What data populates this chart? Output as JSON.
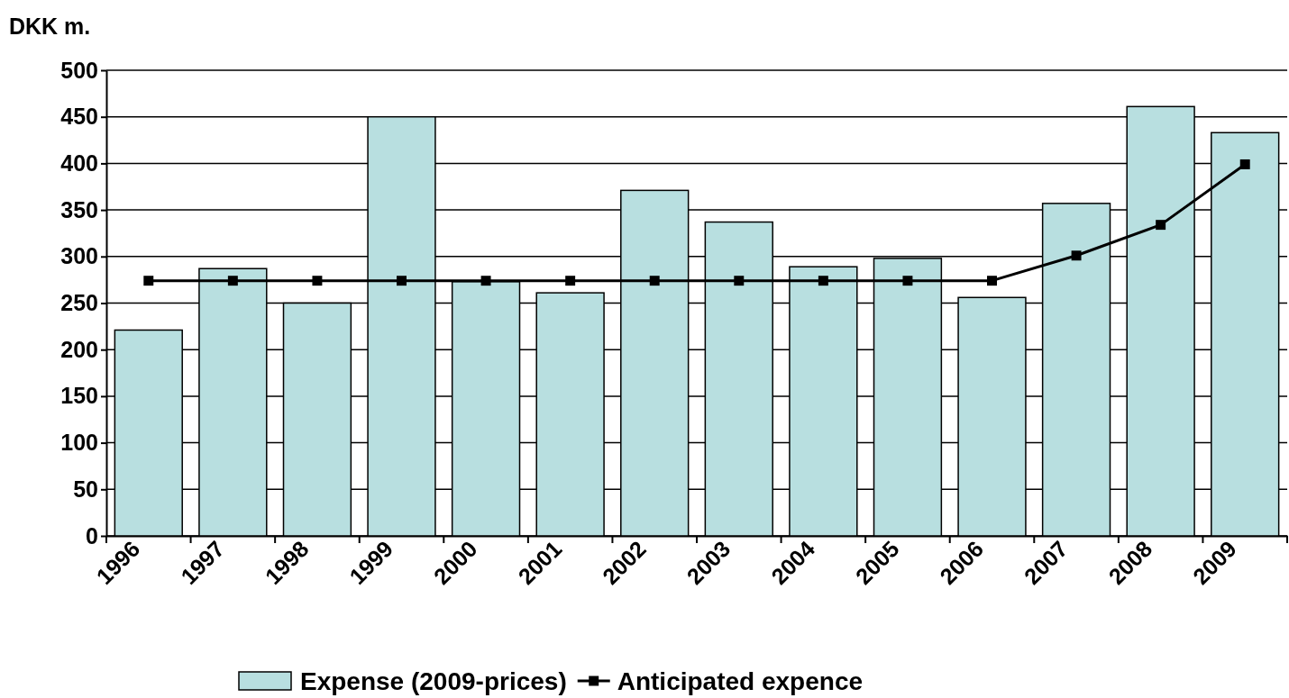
{
  "chart_data": {
    "type": "bar",
    "ylabel": "DKK m.",
    "categories": [
      "1996",
      "1997",
      "1998",
      "1999",
      "2000",
      "2001",
      "2002",
      "2003",
      "2004",
      "2005",
      "2006",
      "2007",
      "2008",
      "2009"
    ],
    "series": [
      {
        "name": "Expense (2009-prices)",
        "color": "#b8dfe0",
        "values": [
          221,
          287,
          250,
          450,
          273,
          261,
          371,
          337,
          289,
          298,
          256,
          357,
          461,
          433
        ]
      },
      {
        "name": "Anticipated expence",
        "type": "line",
        "color": "#000000",
        "marker": "square",
        "line_style": "solid",
        "values": [
          274,
          274,
          274,
          274,
          274,
          274,
          274,
          274,
          274,
          274,
          274,
          301,
          334,
          399
        ]
      }
    ],
    "ylim": [
      0,
      500
    ],
    "yticks": [
      0,
      50,
      100,
      150,
      200,
      250,
      300,
      350,
      400,
      450,
      500
    ],
    "grid": "y",
    "legend": "bottom"
  }
}
